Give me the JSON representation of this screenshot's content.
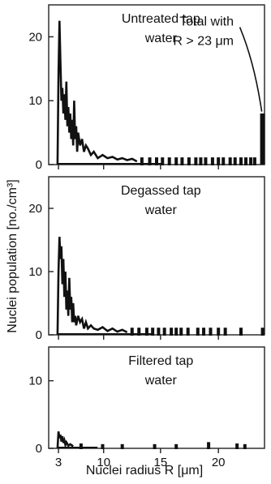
{
  "chart_data": [
    {
      "type": "line",
      "title_lines": [
        "Untreated tap",
        "water"
      ],
      "annotation_lines": [
        "Total with",
        "R > 23 μm"
      ],
      "annotation_value": 8,
      "xlim": [
        2,
        24
      ],
      "ylim": [
        0,
        25
      ],
      "y_ticks": [
        "0",
        "10",
        "20"
      ],
      "y_tick_values": [
        0,
        10,
        20
      ],
      "line": {
        "x": [
          2.9,
          3.0,
          3.1,
          3.2,
          3.3,
          3.4,
          3.5,
          3.6,
          3.7,
          3.8,
          3.9,
          4.0,
          4.1,
          4.2,
          4.3,
          4.4,
          4.5,
          4.6,
          4.7,
          4.8,
          4.9,
          5.0,
          5.2,
          5.4,
          5.6,
          5.8,
          6.0,
          6.3,
          6.6,
          7.0,
          7.5,
          8.0,
          8.5,
          9.0,
          9.5,
          10.0,
          10.5,
          11.0
        ],
        "y": [
          0,
          14,
          22.5,
          16,
          10,
          12,
          8,
          11,
          7,
          13,
          6,
          9,
          5,
          8,
          4,
          7,
          3,
          10,
          4,
          6,
          2,
          5,
          3,
          4,
          2,
          3,
          2.5,
          1.5,
          2,
          1,
          1.5,
          1,
          1.2,
          0.8,
          1,
          0.7,
          0.9,
          0.5
        ]
      },
      "ticks_x": [
        11.5,
        12.3,
        13.0,
        13.6,
        14.3,
        15.0,
        15.6,
        16.3,
        17.0,
        17.5,
        18.0,
        18.7,
        19.3,
        19.8,
        20.5,
        21.0,
        21.6,
        22.1,
        22.6,
        23.0
      ],
      "ticks_y": [
        1,
        1,
        1,
        1,
        1,
        1,
        1,
        1,
        1,
        1,
        1,
        1,
        1,
        1,
        1,
        1,
        1,
        1,
        1,
        1
      ],
      "total_bar": {
        "x": 23.8,
        "value": 8
      }
    },
    {
      "type": "line",
      "title_lines": [
        "Degassed tap",
        "water"
      ],
      "xlim": [
        2,
        24
      ],
      "ylim": [
        0,
        25
      ],
      "y_ticks": [
        "0",
        "10",
        "20"
      ],
      "y_tick_values": [
        0,
        10,
        20
      ],
      "line": {
        "x": [
          2.9,
          3.0,
          3.1,
          3.2,
          3.3,
          3.4,
          3.5,
          3.6,
          3.7,
          3.8,
          3.9,
          4.0,
          4.1,
          4.2,
          4.3,
          4.4,
          4.5,
          4.6,
          4.7,
          4.8,
          5.0,
          5.2,
          5.4,
          5.6,
          5.8,
          6.0,
          6.3,
          6.6,
          7.0,
          7.5,
          8.0,
          8.5,
          9.0,
          9.5,
          10.0
        ],
        "y": [
          0,
          10,
          15.5,
          12,
          14,
          8,
          12,
          6,
          10,
          4,
          7,
          3,
          9,
          4,
          6,
          2,
          5,
          2,
          3,
          1.5,
          3,
          2,
          2.5,
          1,
          2,
          1,
          1.5,
          1,
          0.8,
          1.2,
          0.6,
          1,
          0.5,
          0.8,
          0.4
        ]
      },
      "ticks_x": [
        10.5,
        11.2,
        12.0,
        12.6,
        13.2,
        13.8,
        14.5,
        15.0,
        15.5,
        16.2,
        17.2,
        17.8,
        18.5,
        19.3,
        20.0,
        21.6,
        23.8
      ],
      "ticks_y": [
        1,
        1,
        1,
        1,
        1,
        1,
        1,
        1,
        1,
        1,
        1,
        1,
        1,
        1,
        1,
        1,
        1
      ]
    },
    {
      "type": "scatter",
      "title_lines": [
        "Filtered tap",
        "water"
      ],
      "xlim": [
        2,
        24
      ],
      "ylim": [
        0,
        15
      ],
      "y_ticks": [
        "0",
        "10"
      ],
      "y_tick_values": [
        0,
        10
      ],
      "line": {
        "x": [
          2.9,
          3.0,
          3.1,
          3.2,
          3.3,
          3.4,
          3.5,
          3.6,
          3.7,
          3.8,
          4.0,
          4.2,
          4.5
        ],
        "y": [
          0,
          2.5,
          1.5,
          2,
          1,
          1.8,
          0.8,
          1.2,
          0.5,
          0.9,
          0.4,
          0.6,
          0.3
        ]
      },
      "ticks_x": [
        5.3,
        7.5,
        9.5,
        12.8,
        15.0,
        18.3,
        21.2,
        22.0
      ],
      "ticks_y": [
        0.6,
        0.5,
        0.5,
        0.5,
        0.5,
        0.8,
        0.6,
        0.5
      ]
    }
  ],
  "x_axis": {
    "label": "Nuclei radius R [μm]",
    "tick_labels": [
      "3",
      "10",
      "15",
      "20"
    ],
    "tick_values": [
      3,
      7.6,
      13.4,
      19.3
    ]
  },
  "y_axis": {
    "label": "Nuclei population [no./cm³]"
  }
}
